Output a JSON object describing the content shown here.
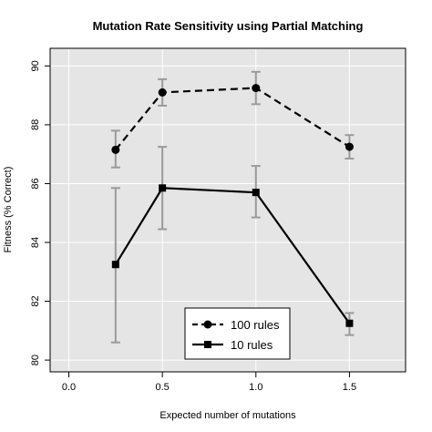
{
  "chart_data": {
    "type": "line",
    "title": "Mutation Rate Sensitivity using Partial Matching",
    "xlabel": "Expected number of mutations",
    "ylabel": "Fitness (% Correct)",
    "xlim": [
      -0.1,
      1.8
    ],
    "ylim": [
      79.6,
      90.6
    ],
    "x_ticks": [
      0.0,
      0.5,
      1.0,
      1.5
    ],
    "x_tick_labels": [
      "0.0",
      "0.5",
      "1.0",
      "1.5"
    ],
    "y_ticks": [
      80,
      82,
      84,
      86,
      88,
      90
    ],
    "y_tick_labels": [
      "80",
      "82",
      "84",
      "86",
      "88",
      "90"
    ],
    "grid": true,
    "legend_position": "bottom-center",
    "colors": {
      "panel": "#e5e5e5",
      "grid": "#ffffff",
      "series": "#000000",
      "error_bar": "#9a9a9a"
    },
    "series": [
      {
        "name": "100 rules",
        "line_style": "dashed",
        "marker": "circle",
        "x": [
          0.25,
          0.5,
          1.0,
          1.5
        ],
        "y": [
          87.15,
          89.1,
          89.25,
          87.25
        ],
        "err_low": [
          86.55,
          88.65,
          88.7,
          86.85
        ],
        "err_high": [
          87.8,
          89.55,
          89.8,
          87.65
        ]
      },
      {
        "name": "10 rules",
        "line_style": "solid",
        "marker": "square",
        "x": [
          0.25,
          0.5,
          1.0,
          1.5
        ],
        "y": [
          83.25,
          85.85,
          85.7,
          81.25
        ],
        "err_low": [
          80.6,
          84.45,
          84.85,
          80.85
        ],
        "err_high": [
          85.85,
          87.25,
          86.6,
          81.6
        ]
      }
    ]
  }
}
